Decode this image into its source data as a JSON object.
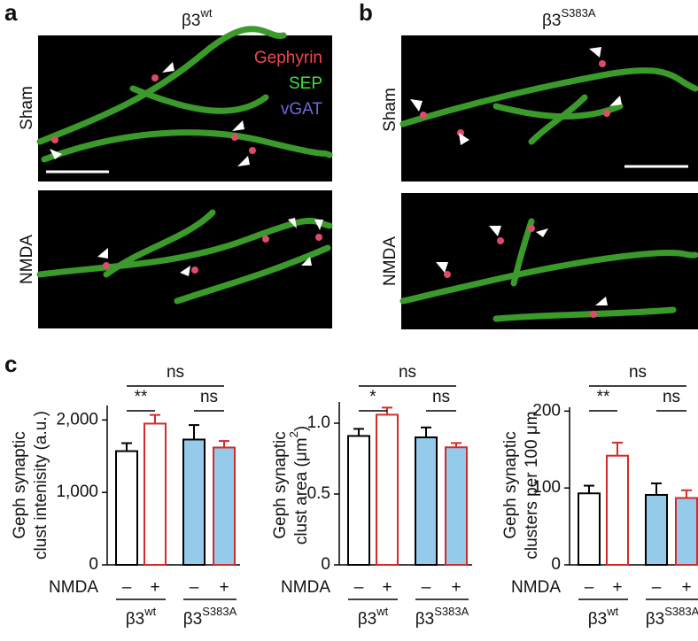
{
  "panels": [
    {
      "label": "a",
      "genotype": {
        "base": "β3",
        "sup": "wt"
      }
    },
    {
      "label": "b",
      "genotype": {
        "base": "β3",
        "sup": "S383A"
      }
    }
  ],
  "conditions": [
    "Sham",
    "NMDA"
  ],
  "channels": [
    {
      "name": "Gephyrin",
      "color": "#f04848"
    },
    {
      "name": "SEP",
      "color": "#3ee03e"
    },
    {
      "name": "vGAT",
      "color": "#6a6ad8"
    }
  ],
  "panel_c_label": "c",
  "chart_data": [
    {
      "type": "bar",
      "ylabel": [
        "Geph synaptic",
        "clust intenisity (a.u.)"
      ],
      "x_label": "NMDA",
      "categories": [
        "–",
        "+",
        "–",
        "+"
      ],
      "groups": [
        {
          "base": "β3",
          "sup": "wt"
        },
        {
          "base": "β3",
          "sup": "S383A"
        }
      ],
      "values": [
        1570,
        1950,
        1730,
        1620
      ],
      "errors": [
        110,
        120,
        200,
        90
      ],
      "fill_colors": [
        "#ffffff",
        "#ffffff",
        "#94cbea",
        "#94cbea"
      ],
      "edge_colors": [
        "#000000",
        "#d42a2a",
        "#000000",
        "#d42a2a"
      ],
      "ylim": [
        0,
        2200
      ],
      "yticks": [
        0,
        {
          "value": 1000,
          "label": "1,000"
        },
        {
          "value": 2000,
          "label": "2,000"
        }
      ],
      "annotations": [
        "ns",
        "**",
        "ns"
      ]
    },
    {
      "type": "bar",
      "ylabel": [
        "Geph synaptic",
        {
          "base": "clust area (μm",
          "sup": "2",
          "tail": ")"
        }
      ],
      "x_label": "NMDA",
      "categories": [
        "–",
        "+",
        "–",
        "+"
      ],
      "groups": [
        {
          "base": "β3",
          "sup": "wt"
        },
        {
          "base": "β3",
          "sup": "S383A"
        }
      ],
      "values": [
        0.91,
        1.06,
        0.9,
        0.83
      ],
      "errors": [
        0.05,
        0.05,
        0.07,
        0.03
      ],
      "fill_colors": [
        "#ffffff",
        "#ffffff",
        "#94cbea",
        "#94cbea"
      ],
      "edge_colors": [
        "#000000",
        "#d42a2a",
        "#000000",
        "#d42a2a"
      ],
      "ylim": [
        0,
        1.15
      ],
      "yticks": [
        0,
        0.5,
        {
          "value": 1,
          "label": "1.0"
        }
      ],
      "annotations": [
        "ns",
        "*",
        "ns"
      ]
    },
    {
      "type": "bar",
      "ylabel": [
        "Geph synaptic",
        "clusters per 100 μm"
      ],
      "x_label": "NMDA",
      "categories": [
        "–",
        "+",
        "–",
        "+"
      ],
      "groups": [
        {
          "base": "β3",
          "sup": "wt"
        },
        {
          "base": "β3",
          "sup": "S383A"
        }
      ],
      "values": [
        93,
        142,
        91,
        87
      ],
      "errors": [
        10,
        17,
        15,
        10
      ],
      "fill_colors": [
        "#ffffff",
        "#ffffff",
        "#94cbea",
        "#94cbea"
      ],
      "edge_colors": [
        "#000000",
        "#d42a2a",
        "#000000",
        "#d42a2a"
      ],
      "ylim": [
        0,
        205
      ],
      "yticks": [
        0,
        100,
        200
      ],
      "annotations": [
        "ns",
        "**",
        "ns"
      ]
    }
  ]
}
